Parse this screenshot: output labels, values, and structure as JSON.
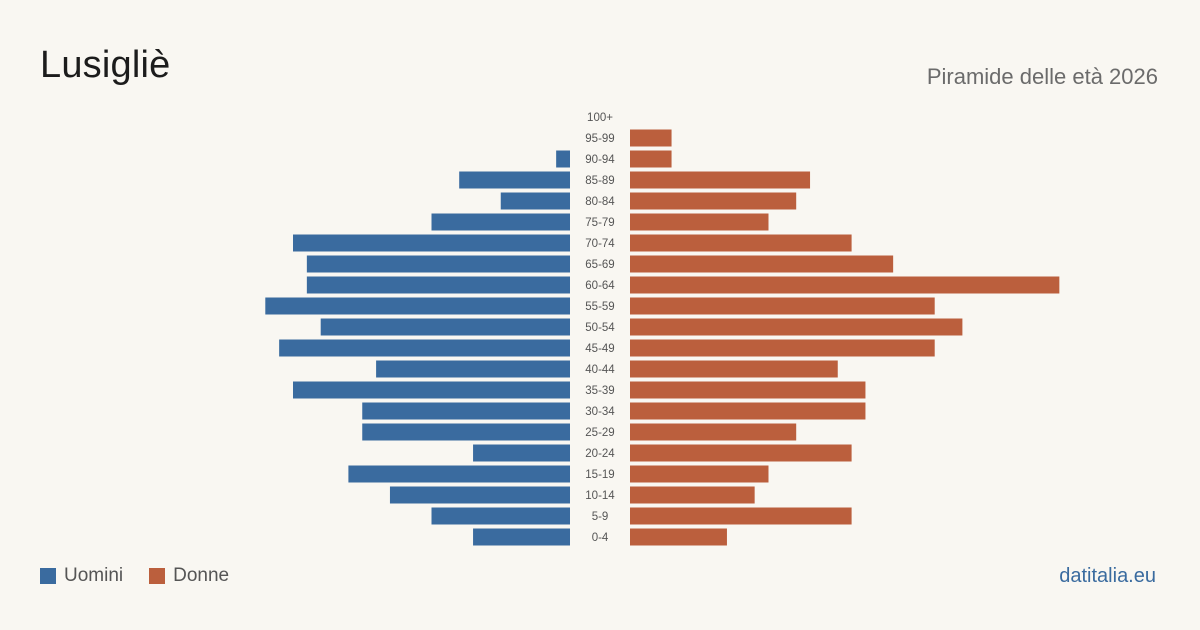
{
  "header": {
    "title": "Lusigliè",
    "subtitle": "Piramide delle età 2026"
  },
  "legend": {
    "items": [
      {
        "label": "Uomini",
        "color": "#3a6b9f"
      },
      {
        "label": "Donne",
        "color": "#bb5f3d"
      }
    ]
  },
  "footer": {
    "source": "datitalia.eu"
  },
  "chart_data": {
    "type": "bar",
    "orientation": "horizontal-pyramid",
    "categories": [
      "100+",
      "95-99",
      "90-94",
      "85-89",
      "80-84",
      "75-79",
      "70-74",
      "65-69",
      "60-64",
      "55-59",
      "50-54",
      "45-49",
      "40-44",
      "35-39",
      "30-34",
      "25-29",
      "20-24",
      "15-19",
      "10-14",
      "5-9",
      "0-4"
    ],
    "series": [
      {
        "name": "Uomini",
        "color": "#3a6b9f",
        "values": [
          0,
          0,
          1,
          8,
          5,
          10,
          20,
          19,
          19,
          22,
          18,
          21,
          14,
          20,
          15,
          15,
          7,
          16,
          13,
          10,
          7
        ]
      },
      {
        "name": "Donne",
        "color": "#bb5f3d",
        "values": [
          0,
          3,
          3,
          13,
          12,
          10,
          16,
          19,
          31,
          22,
          24,
          22,
          15,
          17,
          17,
          12,
          16,
          10,
          9,
          16,
          7
        ]
      }
    ],
    "grid": false,
    "legend_position": "bottom-left"
  }
}
